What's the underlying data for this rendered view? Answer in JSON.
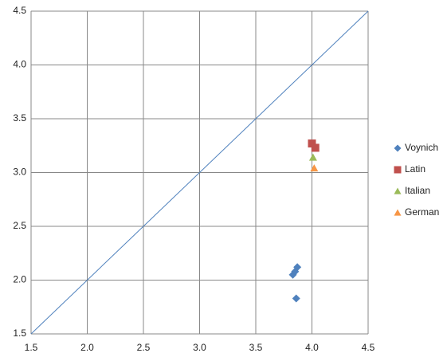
{
  "chart_data": {
    "type": "scatter",
    "xlim": [
      1.5,
      4.5
    ],
    "xticks": [
      1.5,
      {
        "value": 2,
        "label": "2.0"
      },
      2.5,
      {
        "value": 3,
        "label": "3.0"
      },
      3.5,
      {
        "value": 4,
        "label": "4.0"
      },
      4.5
    ],
    "ylim": [
      1.5,
      4.5
    ],
    "yticks": [
      1.5,
      {
        "value": 2,
        "label": "2.0"
      },
      2.5,
      {
        "value": 3,
        "label": "3.0"
      },
      3.5,
      {
        "value": 4,
        "label": "4.0"
      },
      4.5
    ],
    "grid": true,
    "legend": "right",
    "reference_line": {
      "x": [
        1.5,
        4.5
      ],
      "y": [
        1.5,
        4.5
      ],
      "color": "#4f81bd"
    },
    "series": [
      {
        "name": "Voynich",
        "color": "#4f81bd",
        "marker": "diamond",
        "x": [
          3.83,
          3.85,
          3.87,
          3.86
        ],
        "values": [
          2.05,
          2.08,
          2.12,
          1.83
        ]
      },
      {
        "name": "Latin",
        "color": "#c0504d",
        "marker": "square",
        "x": [
          4.0,
          4.03
        ],
        "values": [
          3.27,
          3.23
        ]
      },
      {
        "name": "Italian",
        "color": "#9bbb59",
        "marker": "triangle",
        "x": [
          4.01
        ],
        "values": [
          3.14
        ]
      },
      {
        "name": "German",
        "color": "#f79646",
        "marker": "triangle",
        "x": [
          4.02
        ],
        "values": [
          3.04
        ]
      }
    ]
  }
}
